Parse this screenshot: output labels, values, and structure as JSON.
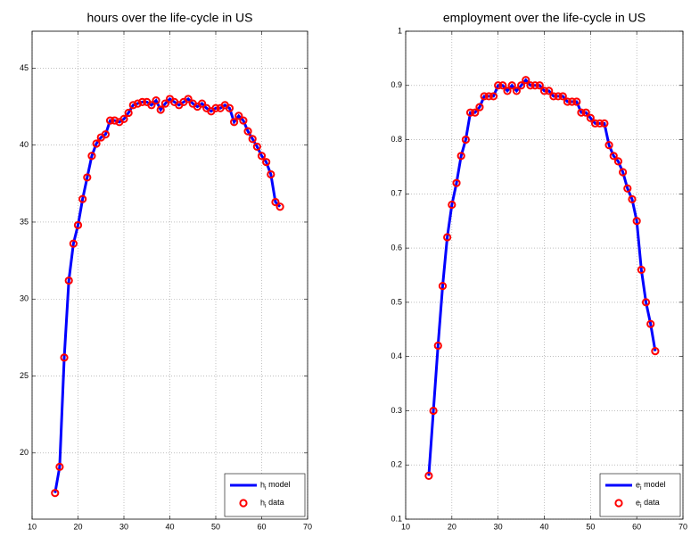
{
  "chart_data": [
    {
      "type": "line",
      "title": "hours over the life-cycle in US",
      "x": [
        15,
        16,
        17,
        18,
        19,
        20,
        21,
        22,
        23,
        24,
        25,
        26,
        27,
        28,
        29,
        30,
        31,
        32,
        33,
        34,
        35,
        36,
        37,
        38,
        39,
        40,
        41,
        42,
        43,
        44,
        45,
        46,
        47,
        48,
        49,
        50,
        51,
        52,
        53,
        54,
        55,
        56,
        57,
        58,
        59,
        60,
        61,
        62,
        63,
        64
      ],
      "series": [
        {
          "name": "h_i model",
          "color": "#0000ff",
          "style": "line",
          "values": [
            17.4,
            19.1,
            26.2,
            31.2,
            33.6,
            34.8,
            36.5,
            37.9,
            39.3,
            40.1,
            40.5,
            40.7,
            41.6,
            41.6,
            41.5,
            41.7,
            42.1,
            42.6,
            42.7,
            42.8,
            42.8,
            42.6,
            42.9,
            42.3,
            42.7,
            43.0,
            42.8,
            42.6,
            42.8,
            43.0,
            42.7,
            42.5,
            42.7,
            42.4,
            42.2,
            42.4,
            42.4,
            42.6,
            42.4,
            41.5,
            41.9,
            41.6,
            40.9,
            40.4,
            39.9,
            39.3,
            38.9,
            38.1,
            36.3,
            36.0
          ]
        },
        {
          "name": "h_i data",
          "color": "#ff0000",
          "style": "marker",
          "values": [
            17.4,
            19.1,
            26.2,
            31.2,
            33.6,
            34.8,
            36.5,
            37.9,
            39.3,
            40.1,
            40.5,
            40.7,
            41.6,
            41.6,
            41.5,
            41.7,
            42.1,
            42.6,
            42.7,
            42.8,
            42.8,
            42.6,
            42.9,
            42.3,
            42.7,
            43.0,
            42.8,
            42.6,
            42.8,
            43.0,
            42.7,
            42.5,
            42.7,
            42.4,
            42.2,
            42.4,
            42.4,
            42.6,
            42.4,
            41.5,
            41.9,
            41.6,
            40.9,
            40.4,
            39.9,
            39.3,
            38.9,
            38.1,
            36.3,
            36.0
          ]
        }
      ],
      "xlim": [
        10,
        70
      ],
      "xticks": [
        10,
        20,
        30,
        40,
        50,
        60,
        70
      ],
      "ylim": [
        15.7,
        47.4
      ],
      "yticks": [
        20,
        25,
        30,
        35,
        40,
        45
      ],
      "grid": true,
      "legend": "lower right"
    },
    {
      "type": "line",
      "title": "employment over the life-cycle in US",
      "x": [
        15,
        16,
        17,
        18,
        19,
        20,
        21,
        22,
        23,
        24,
        25,
        26,
        27,
        28,
        29,
        30,
        31,
        32,
        33,
        34,
        35,
        36,
        37,
        38,
        39,
        40,
        41,
        42,
        43,
        44,
        45,
        46,
        47,
        48,
        49,
        50,
        51,
        52,
        53,
        54,
        55,
        56,
        57,
        58,
        59,
        60,
        61,
        62,
        63,
        64
      ],
      "series": [
        {
          "name": "e_i model",
          "color": "#0000ff",
          "style": "line",
          "values": [
            0.18,
            0.3,
            0.42,
            0.53,
            0.62,
            0.68,
            0.72,
            0.77,
            0.8,
            0.85,
            0.85,
            0.86,
            0.88,
            0.88,
            0.88,
            0.9,
            0.9,
            0.89,
            0.9,
            0.89,
            0.9,
            0.91,
            0.9,
            0.9,
            0.9,
            0.89,
            0.89,
            0.88,
            0.88,
            0.88,
            0.87,
            0.87,
            0.87,
            0.85,
            0.85,
            0.84,
            0.83,
            0.83,
            0.83,
            0.79,
            0.77,
            0.76,
            0.74,
            0.71,
            0.69,
            0.65,
            0.56,
            0.5,
            0.46,
            0.41
          ]
        },
        {
          "name": "e_i data",
          "color": "#ff0000",
          "style": "marker",
          "values": [
            0.18,
            0.3,
            0.42,
            0.53,
            0.62,
            0.68,
            0.72,
            0.77,
            0.8,
            0.85,
            0.85,
            0.86,
            0.88,
            0.88,
            0.88,
            0.9,
            0.9,
            0.89,
            0.9,
            0.89,
            0.9,
            0.91,
            0.9,
            0.9,
            0.9,
            0.89,
            0.89,
            0.88,
            0.88,
            0.88,
            0.87,
            0.87,
            0.87,
            0.85,
            0.85,
            0.84,
            0.83,
            0.83,
            0.83,
            0.79,
            0.77,
            0.76,
            0.74,
            0.71,
            0.69,
            0.65,
            0.56,
            0.5,
            0.46,
            0.41
          ]
        }
      ],
      "xlim": [
        10,
        70
      ],
      "xticks": [
        10,
        20,
        30,
        40,
        50,
        60,
        70
      ],
      "ylim": [
        0.1,
        1
      ],
      "yticks": [
        0.1,
        0.2,
        0.3,
        0.4,
        0.5,
        0.6,
        0.7,
        0.8,
        0.9,
        1
      ],
      "grid": true,
      "legend": "lower right"
    }
  ]
}
